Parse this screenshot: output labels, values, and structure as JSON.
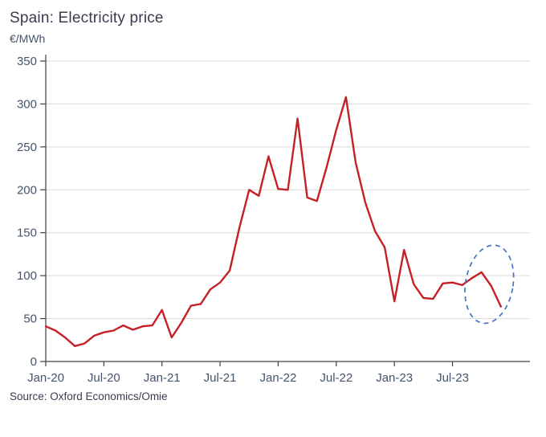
{
  "chart_data": {
    "type": "line",
    "title": "Spain: Electricity price",
    "unit_label": "€/MWh",
    "source": "Source: Oxford Economics/Omie",
    "x": [
      "Jan-20",
      "Feb-20",
      "Mar-20",
      "Apr-20",
      "May-20",
      "Jun-20",
      "Jul-20",
      "Aug-20",
      "Sep-20",
      "Oct-20",
      "Nov-20",
      "Dec-20",
      "Jan-21",
      "Feb-21",
      "Mar-21",
      "Apr-21",
      "May-21",
      "Jun-21",
      "Jul-21",
      "Aug-21",
      "Sep-21",
      "Oct-21",
      "Nov-21",
      "Dec-21",
      "Jan-22",
      "Feb-22",
      "Mar-22",
      "Apr-22",
      "May-22",
      "Jun-22",
      "Jul-22",
      "Aug-22",
      "Sep-22",
      "Oct-22",
      "Nov-22",
      "Dec-22",
      "Jan-23",
      "Feb-23",
      "Mar-23",
      "Apr-23",
      "May-23",
      "Jun-23",
      "Jul-23",
      "Aug-23",
      "Sep-23",
      "Oct-23",
      "Nov-23",
      "Dec-23"
    ],
    "values": [
      41,
      36,
      28,
      18,
      21,
      30,
      34,
      36,
      42,
      37,
      41,
      42,
      60,
      28,
      45,
      65,
      67,
      84,
      92,
      106,
      156,
      200,
      193,
      239,
      201,
      200,
      283,
      191,
      187,
      226,
      270,
      308,
      232,
      185,
      152,
      133,
      70,
      130,
      90,
      74,
      73,
      91,
      92,
      89,
      97,
      104,
      88,
      64
    ],
    "x_tick_labels": [
      "Jan-20",
      "Jul-20",
      "Jan-21",
      "Jul-21",
      "Jan-22",
      "Jul-22",
      "Jan-23",
      "Jul-23"
    ],
    "x_tick_positions": [
      0,
      6,
      12,
      18,
      24,
      30,
      36,
      42
    ],
    "x_axis_month_span": 50,
    "ylim": [
      0,
      350
    ],
    "y_ticks": [
      0,
      50,
      100,
      150,
      200,
      250,
      300,
      350
    ],
    "grid": true,
    "legend": "none",
    "annotation_ellipse": {
      "center_month": 45.8,
      "center_value": 90,
      "radius_months": 2.45,
      "radius_value": 46,
      "rotation_deg": 10,
      "color": "#4472c4"
    },
    "colors": {
      "line": "#c42127",
      "grid": "#d9d9d9",
      "axis": "#404040",
      "tick_text": "#44546a",
      "title_text": "#3b3b4f",
      "annotation": "#4472c4"
    }
  }
}
